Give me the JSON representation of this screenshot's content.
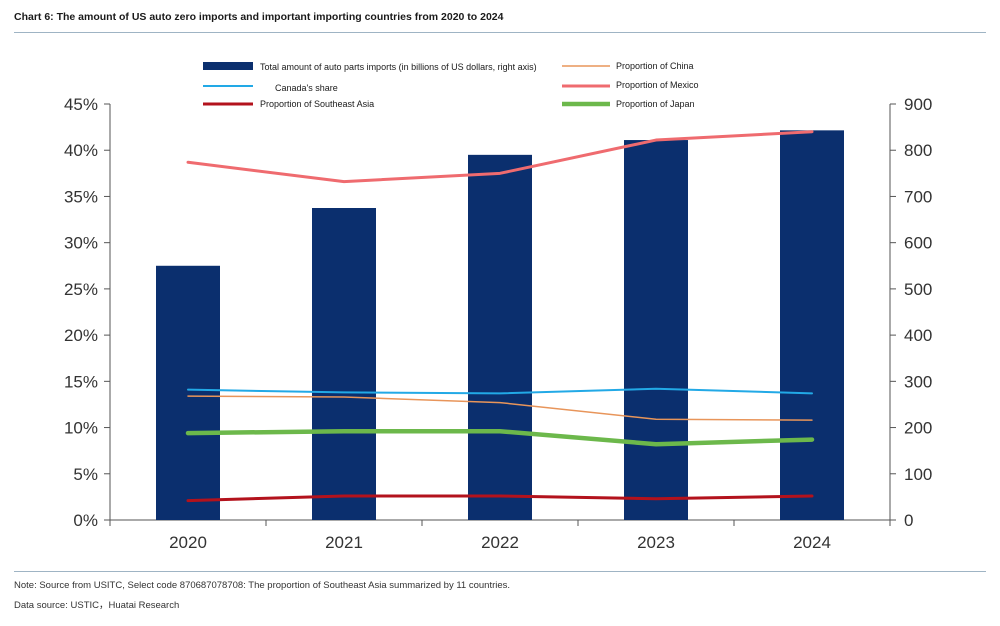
{
  "header": {
    "title": "Chart 6:  The amount of US auto zero imports and important importing countries from 2020 to 2024"
  },
  "footer": {
    "note": "Note: Source from USITC, Select code 870687078708: The proportion of Southeast Asia summarized by 11 countries.",
    "source": "Data source: USTIC，Huatai Research"
  },
  "chart_data": {
    "type": "bar",
    "categories": [
      "2020",
      "2021",
      "2022",
      "2023",
      "2024"
    ],
    "left_axis": {
      "ylim": [
        0,
        45
      ],
      "ticks": [
        "0%",
        "5%",
        "10%",
        "15%",
        "20%",
        "25%",
        "30%",
        "35%",
        "40%",
        "45%"
      ]
    },
    "right_axis": {
      "ylim": [
        0,
        900
      ],
      "ticks": [
        "0",
        "100",
        "200",
        "300",
        "400",
        "500",
        "600",
        "700",
        "800",
        "900"
      ]
    },
    "bars": {
      "name": "Total amount of auto parts imports (in billions of US dollars, right axis)",
      "color": "#0b2f6e",
      "axis": "right",
      "values": [
        550,
        675,
        790,
        822,
        843
      ]
    },
    "series": [
      {
        "name": "Proportion of China",
        "color": "#e8955a",
        "width": 1.5,
        "values": [
          13.4,
          13.3,
          12.7,
          10.9,
          10.8
        ]
      },
      {
        "name": "Proportion of Mexico",
        "color": "#ef6b6f",
        "width": 3,
        "values": [
          38.7,
          36.6,
          37.5,
          41.1,
          42.0
        ]
      },
      {
        "name": "Canada's share",
        "color": "#22a9e6",
        "width": 2,
        "values": [
          14.1,
          13.8,
          13.7,
          14.2,
          13.7
        ]
      },
      {
        "name": "Proportion of Japan",
        "color": "#6cb84b",
        "width": 4.5,
        "values": [
          9.4,
          9.6,
          9.6,
          8.2,
          8.7
        ]
      },
      {
        "name": "Proportion of Southeast Asia",
        "color": "#b3121c",
        "width": 3,
        "values": [
          2.1,
          2.6,
          2.6,
          2.3,
          2.6
        ]
      }
    ],
    "legend": {
      "placement": "top",
      "bar_label": "Total amount of auto parts imports (in billions of US dollars, right axis)",
      "canada_label": "Canada's share",
      "sea_label": "Proportion of Southeast Asia",
      "china_label": "Proportion of China",
      "mexico_label": "Proportion of Mexico",
      "japan_label": "Proportion of Japan"
    },
    "grid": false
  }
}
